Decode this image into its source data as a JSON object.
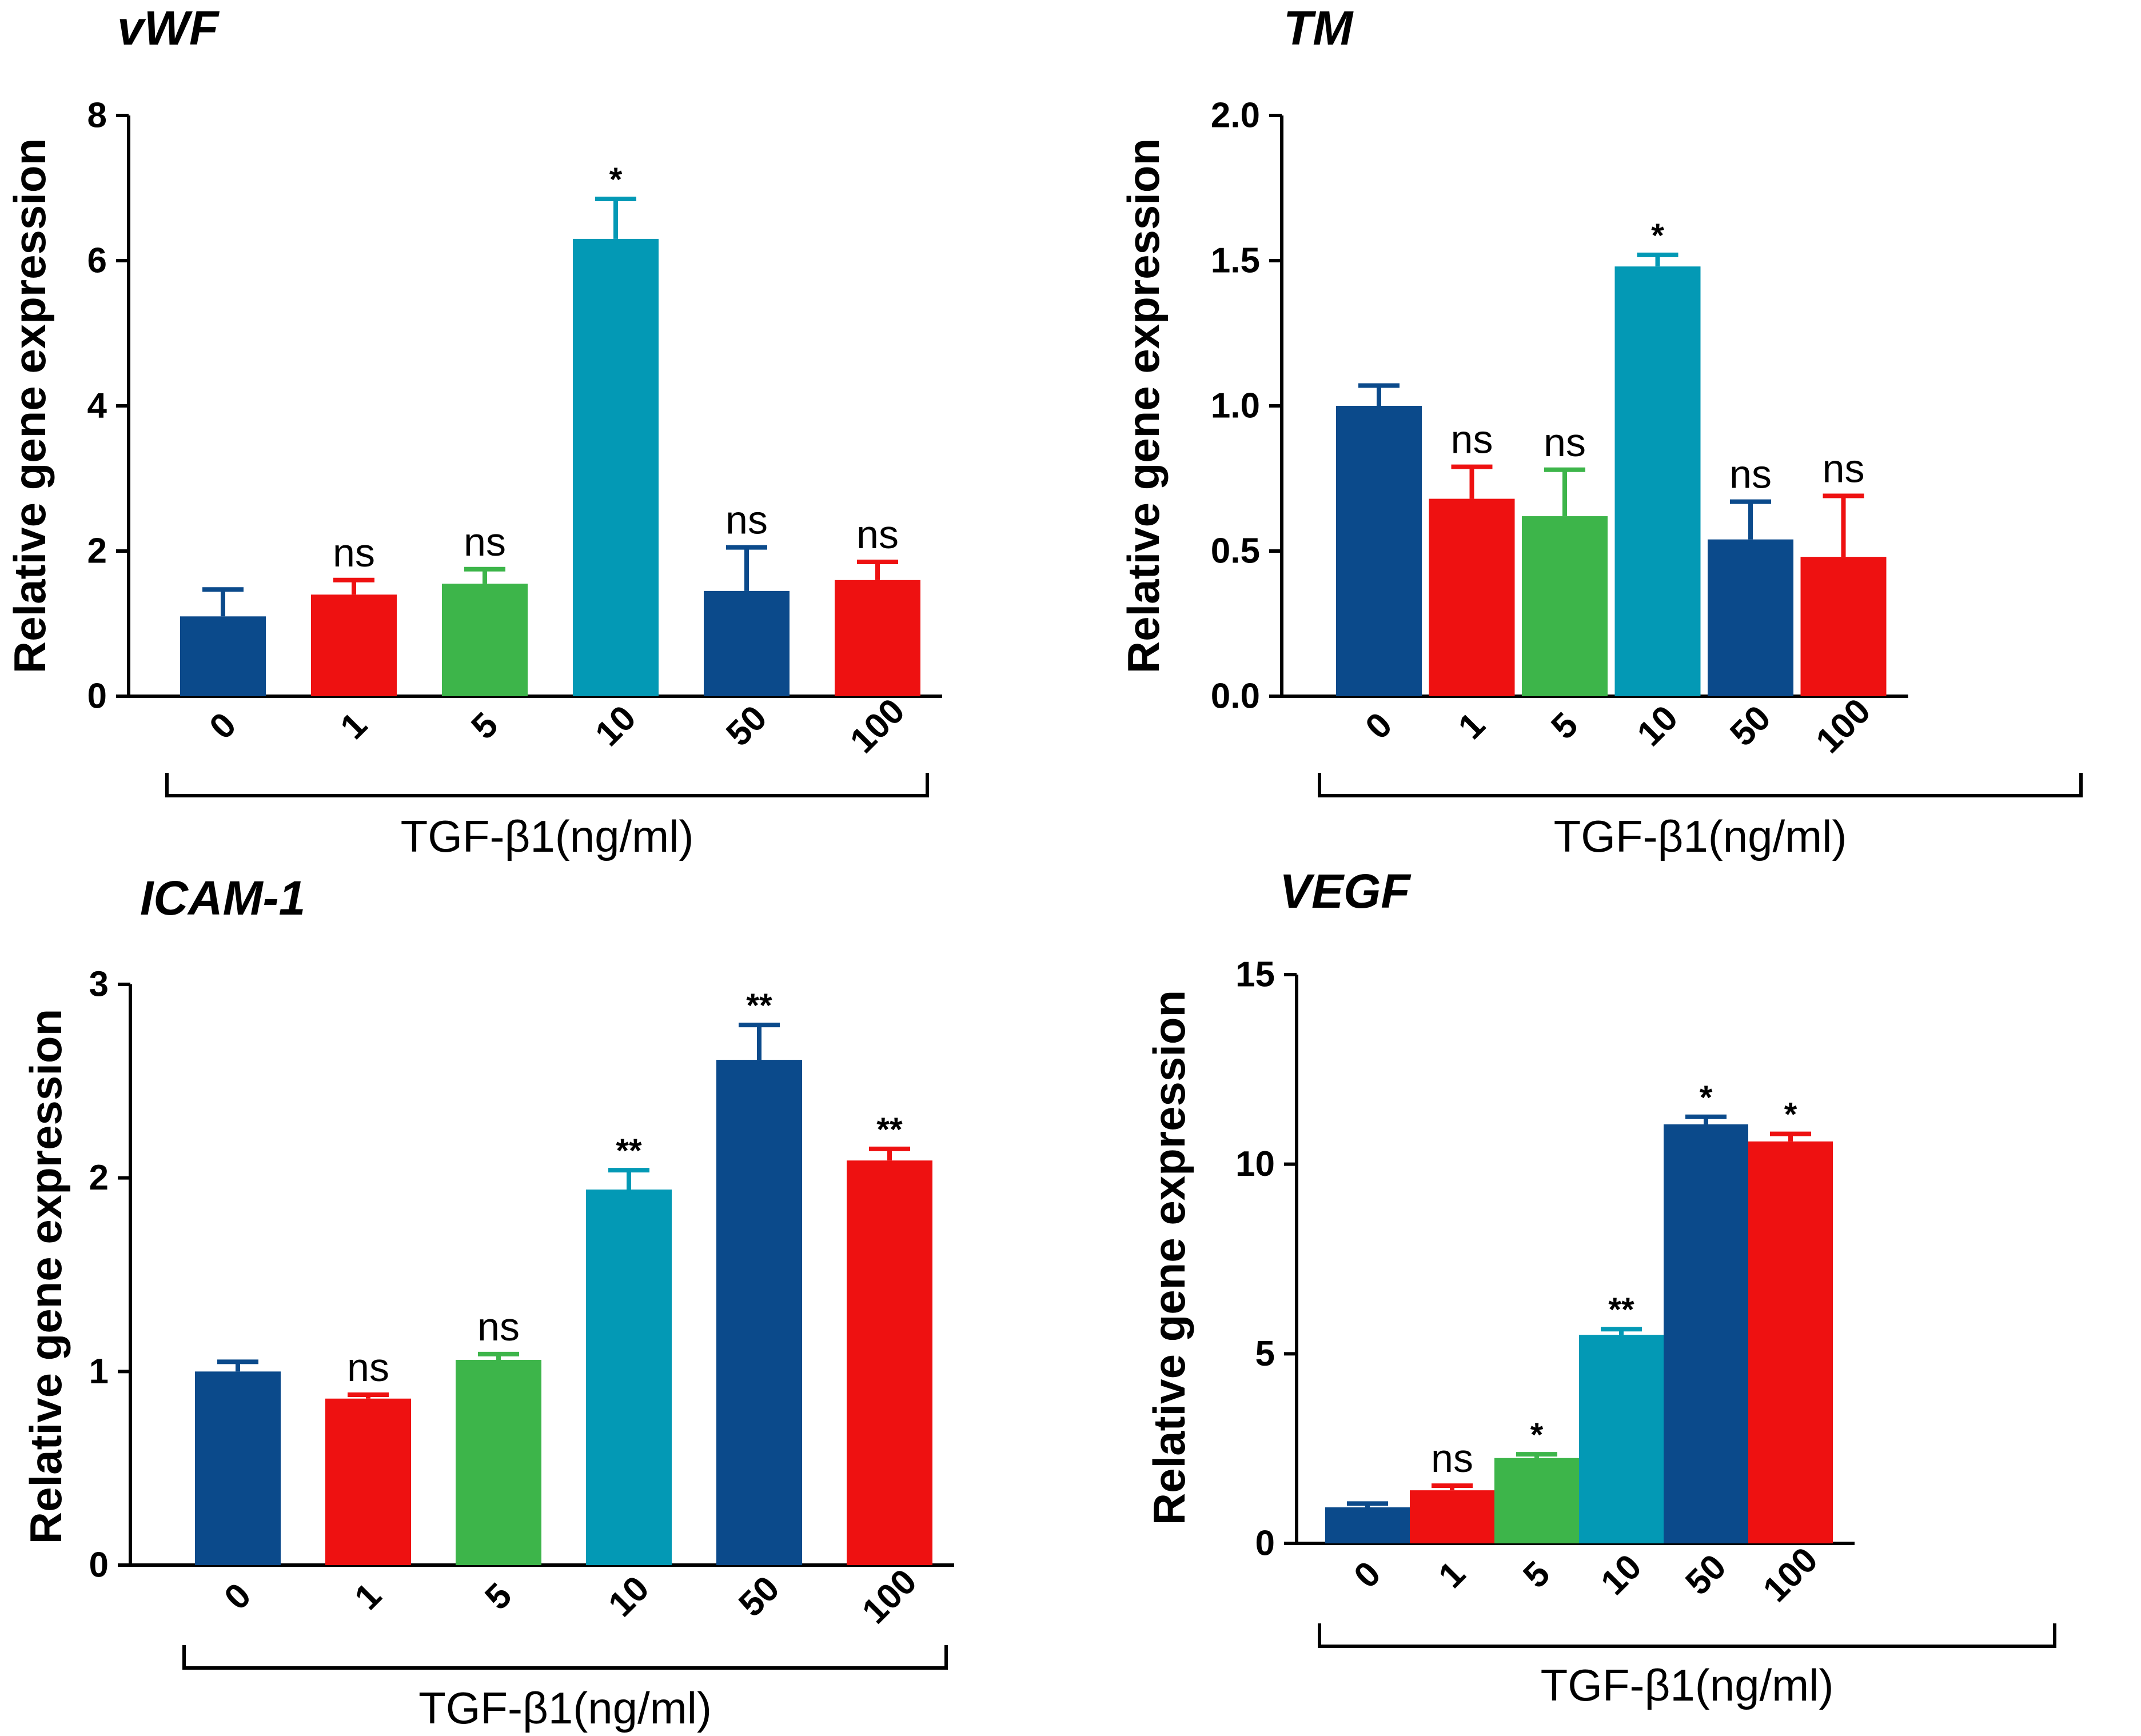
{
  "chart_data": [
    {
      "type": "bar",
      "title": "vWF",
      "ylabel": "Relative gene expression",
      "xlabel": "TGF-β1(ng/ml)",
      "ylim": [
        0,
        8
      ],
      "yticks": [
        0,
        2,
        4,
        6,
        8
      ],
      "ytick_labels": [
        "0",
        "2",
        "4",
        "6",
        "8"
      ],
      "categories": [
        "0",
        "1",
        "5",
        "10",
        "50",
        "100"
      ],
      "values": [
        1.1,
        1.4,
        1.55,
        6.3,
        1.45,
        1.6
      ],
      "errors": [
        0.37,
        0.2,
        0.2,
        0.55,
        0.6,
        0.25
      ],
      "significance": [
        "",
        "ns",
        "ns",
        "*",
        "ns",
        "ns"
      ],
      "colors": [
        "#0b4a8b",
        "#ee1111",
        "#3db54a",
        "#0399b5",
        "#0b4a8b",
        "#ee1111"
      ]
    },
    {
      "type": "bar",
      "title": "TM",
      "ylabel": "Relative gene expression",
      "xlabel": "TGF-β1(ng/ml)",
      "ylim": [
        0,
        2
      ],
      "yticks": [
        0,
        0.5,
        1,
        1.5,
        2
      ],
      "ytick_labels": [
        "0.0",
        "0.5",
        "1.0",
        "1.5",
        "2.0"
      ],
      "categories": [
        "0",
        "1",
        "5",
        "10",
        "50",
        "100"
      ],
      "values": [
        1.0,
        0.68,
        0.62,
        1.48,
        0.54,
        0.48
      ],
      "errors": [
        0.07,
        0.11,
        0.16,
        0.04,
        0.13,
        0.21
      ],
      "significance": [
        "",
        "ns",
        "ns",
        "*",
        "ns",
        "ns"
      ],
      "colors": [
        "#0b4a8b",
        "#ee1111",
        "#3db54a",
        "#0399b5",
        "#0b4a8b",
        "#ee1111"
      ]
    },
    {
      "type": "bar",
      "title": "ICAM-1",
      "ylabel": "Relative gene expression",
      "xlabel": "TGF-β1(ng/ml)",
      "ylim": [
        0,
        3
      ],
      "yticks": [
        0,
        1,
        2,
        3
      ],
      "ytick_labels": [
        "0",
        "1",
        "2",
        "3"
      ],
      "categories": [
        "0",
        "1",
        "5",
        "10",
        "50",
        "100"
      ],
      "values": [
        1.0,
        0.86,
        1.06,
        1.94,
        2.61,
        2.09
      ],
      "errors": [
        0.05,
        0.02,
        0.03,
        0.1,
        0.18,
        0.06
      ],
      "significance": [
        "",
        "ns",
        "ns",
        "**",
        "**",
        "**"
      ],
      "colors": [
        "#0b4a8b",
        "#ee1111",
        "#3db54a",
        "#0399b5",
        "#0b4a8b",
        "#ee1111"
      ]
    },
    {
      "type": "bar",
      "title": "VEGF",
      "ylabel": "Relative gene expression",
      "xlabel": "TGF-β1(ng/ml)",
      "ylim": [
        0,
        15
      ],
      "yticks": [
        0,
        5,
        10,
        15
      ],
      "ytick_labels": [
        "0",
        "5",
        "10",
        "15"
      ],
      "categories": [
        "0",
        "1",
        "5",
        "10",
        "50",
        "100"
      ],
      "values": [
        0.95,
        1.4,
        2.25,
        5.5,
        11.05,
        10.6
      ],
      "errors": [
        0.1,
        0.12,
        0.1,
        0.15,
        0.2,
        0.2
      ],
      "significance": [
        "",
        "ns",
        "*",
        "**",
        "*",
        "*"
      ],
      "colors": [
        "#0b4a8b",
        "#ee1111",
        "#3db54a",
        "#0399b5",
        "#0b4a8b",
        "#ee1111"
      ]
    }
  ]
}
